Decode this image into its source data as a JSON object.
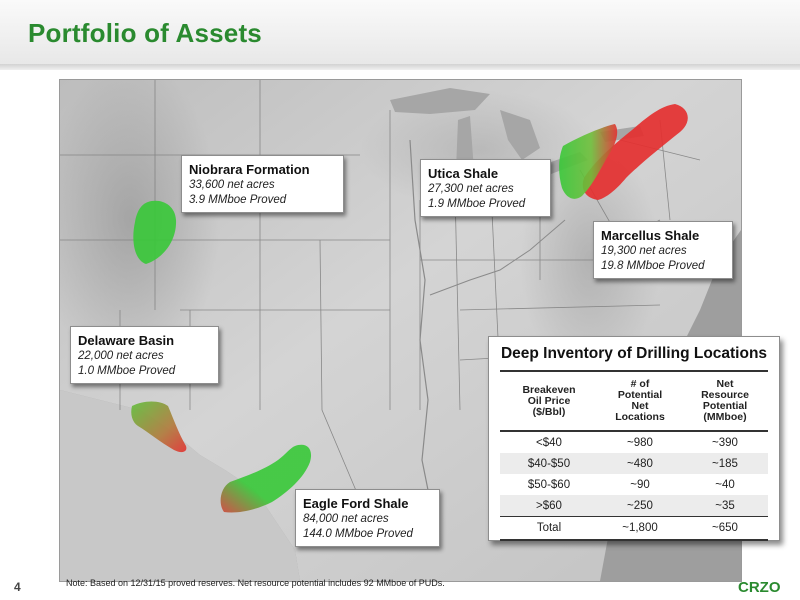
{
  "page": {
    "title": "Portfolio of Assets",
    "page_number": "4",
    "note": "Note:  Based on 12/31/15 proved reserves. Net resource potential includes 92 MMboe of PUDs.",
    "logo": "CRZO"
  },
  "callouts": {
    "niobrara": {
      "name": "Niobrara Formation",
      "acres": "33,600 net acres",
      "proved": "3.9 MMboe Proved"
    },
    "utica": {
      "name": "Utica Shale",
      "acres": "27,300 net acres",
      "proved": "1.9 MMboe Proved"
    },
    "marcellus": {
      "name": "Marcellus Shale",
      "acres": "19,300 net acres",
      "proved": "19.8 MMboe Proved"
    },
    "delaware": {
      "name": "Delaware Basin",
      "acres": "22,000 net acres",
      "proved": "1.0 MMboe Proved"
    },
    "eagle_ford": {
      "name": "Eagle Ford Shale",
      "acres": "84,000 net acres",
      "proved": "144.0 MMboe Proved"
    }
  },
  "inventory": {
    "title": "Deep Inventory of Drilling Locations",
    "headers": [
      [
        "Breakeven",
        "Oil Price",
        "($/Bbl)"
      ],
      [
        "# of",
        "Potential",
        "Net",
        "Locations"
      ],
      [
        "Net",
        "Resource",
        "Potential",
        "(MMboe)"
      ]
    ],
    "rows": [
      [
        "<$40",
        "~980",
        "~390"
      ],
      [
        "$40-$50",
        "~480",
        "~185"
      ],
      [
        "$50-$60",
        "~90",
        "~40"
      ],
      [
        ">$60",
        "~250",
        "~35"
      ]
    ],
    "total": [
      "Total",
      "~1,800",
      "~650"
    ]
  },
  "colors": {
    "brand_green": "#2a8a2f",
    "play_green": "#38c838",
    "play_red": "#e43030"
  }
}
